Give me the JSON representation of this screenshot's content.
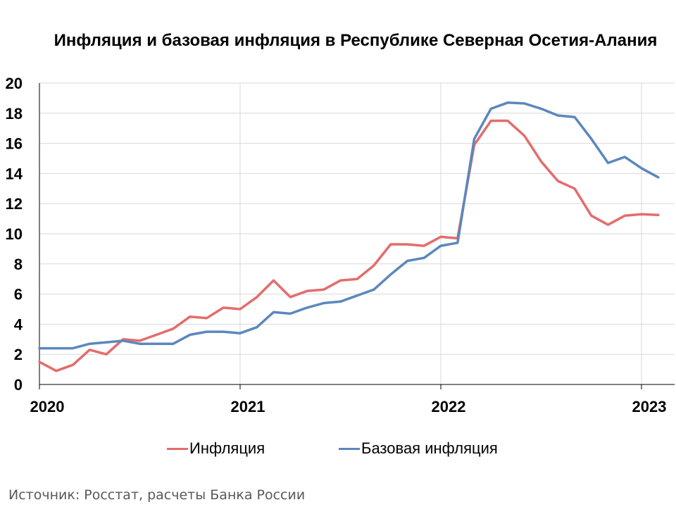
{
  "chart_data": {
    "type": "line",
    "title": "Инфляция и базовая инфляция в Республике Северная Осетия-Алания",
    "xlabel": "",
    "ylabel": "",
    "ylim": [
      0,
      20
    ],
    "yticks": [
      "0",
      "2",
      "4",
      "6",
      "8",
      "10",
      "12",
      "14",
      "16",
      "18",
      "20"
    ],
    "xtick_labels": [
      "2020",
      "2021",
      "2022",
      "2023"
    ],
    "grid": true,
    "legend_position": "bottom",
    "x": [
      "2020-01",
      "2020-02",
      "2020-03",
      "2020-04",
      "2020-05",
      "2020-06",
      "2020-07",
      "2020-08",
      "2020-09",
      "2020-10",
      "2020-11",
      "2020-12",
      "2021-01",
      "2021-02",
      "2021-03",
      "2021-04",
      "2021-05",
      "2021-06",
      "2021-07",
      "2021-08",
      "2021-09",
      "2021-10",
      "2021-11",
      "2021-12",
      "2022-01",
      "2022-02",
      "2022-03",
      "2022-04",
      "2022-05",
      "2022-06",
      "2022-07",
      "2022-08",
      "2022-09",
      "2022-10",
      "2022-11",
      "2022-12",
      "2023-01",
      "2023-02"
    ],
    "series": [
      {
        "name": "Инфляция",
        "color": "#e46c6c",
        "values": [
          1.5,
          0.9,
          1.3,
          2.3,
          2.0,
          3.0,
          2.9,
          3.3,
          3.7,
          4.5,
          4.4,
          5.1,
          5.0,
          5.8,
          6.9,
          5.8,
          6.2,
          6.3,
          6.9,
          7.0,
          7.9,
          9.3,
          9.3,
          9.2,
          9.8,
          9.7,
          15.9,
          17.5,
          17.5,
          16.5,
          14.8,
          13.5,
          13.0,
          11.2,
          10.6,
          11.2,
          11.3,
          11.25
        ]
      },
      {
        "name": "Базовая инфляция",
        "color": "#5b87bd",
        "values": [
          2.4,
          2.4,
          2.4,
          2.7,
          2.8,
          2.9,
          2.7,
          2.7,
          2.7,
          3.3,
          3.5,
          3.5,
          3.4,
          3.8,
          4.8,
          4.7,
          5.1,
          5.4,
          5.5,
          5.9,
          6.3,
          7.3,
          8.2,
          8.4,
          9.2,
          9.4,
          16.3,
          18.3,
          18.7,
          18.65,
          18.3,
          17.85,
          17.75,
          16.3,
          14.7,
          15.1,
          14.35,
          13.75
        ]
      }
    ]
  },
  "source": "Источник: Росстат, расчеты Банка России"
}
